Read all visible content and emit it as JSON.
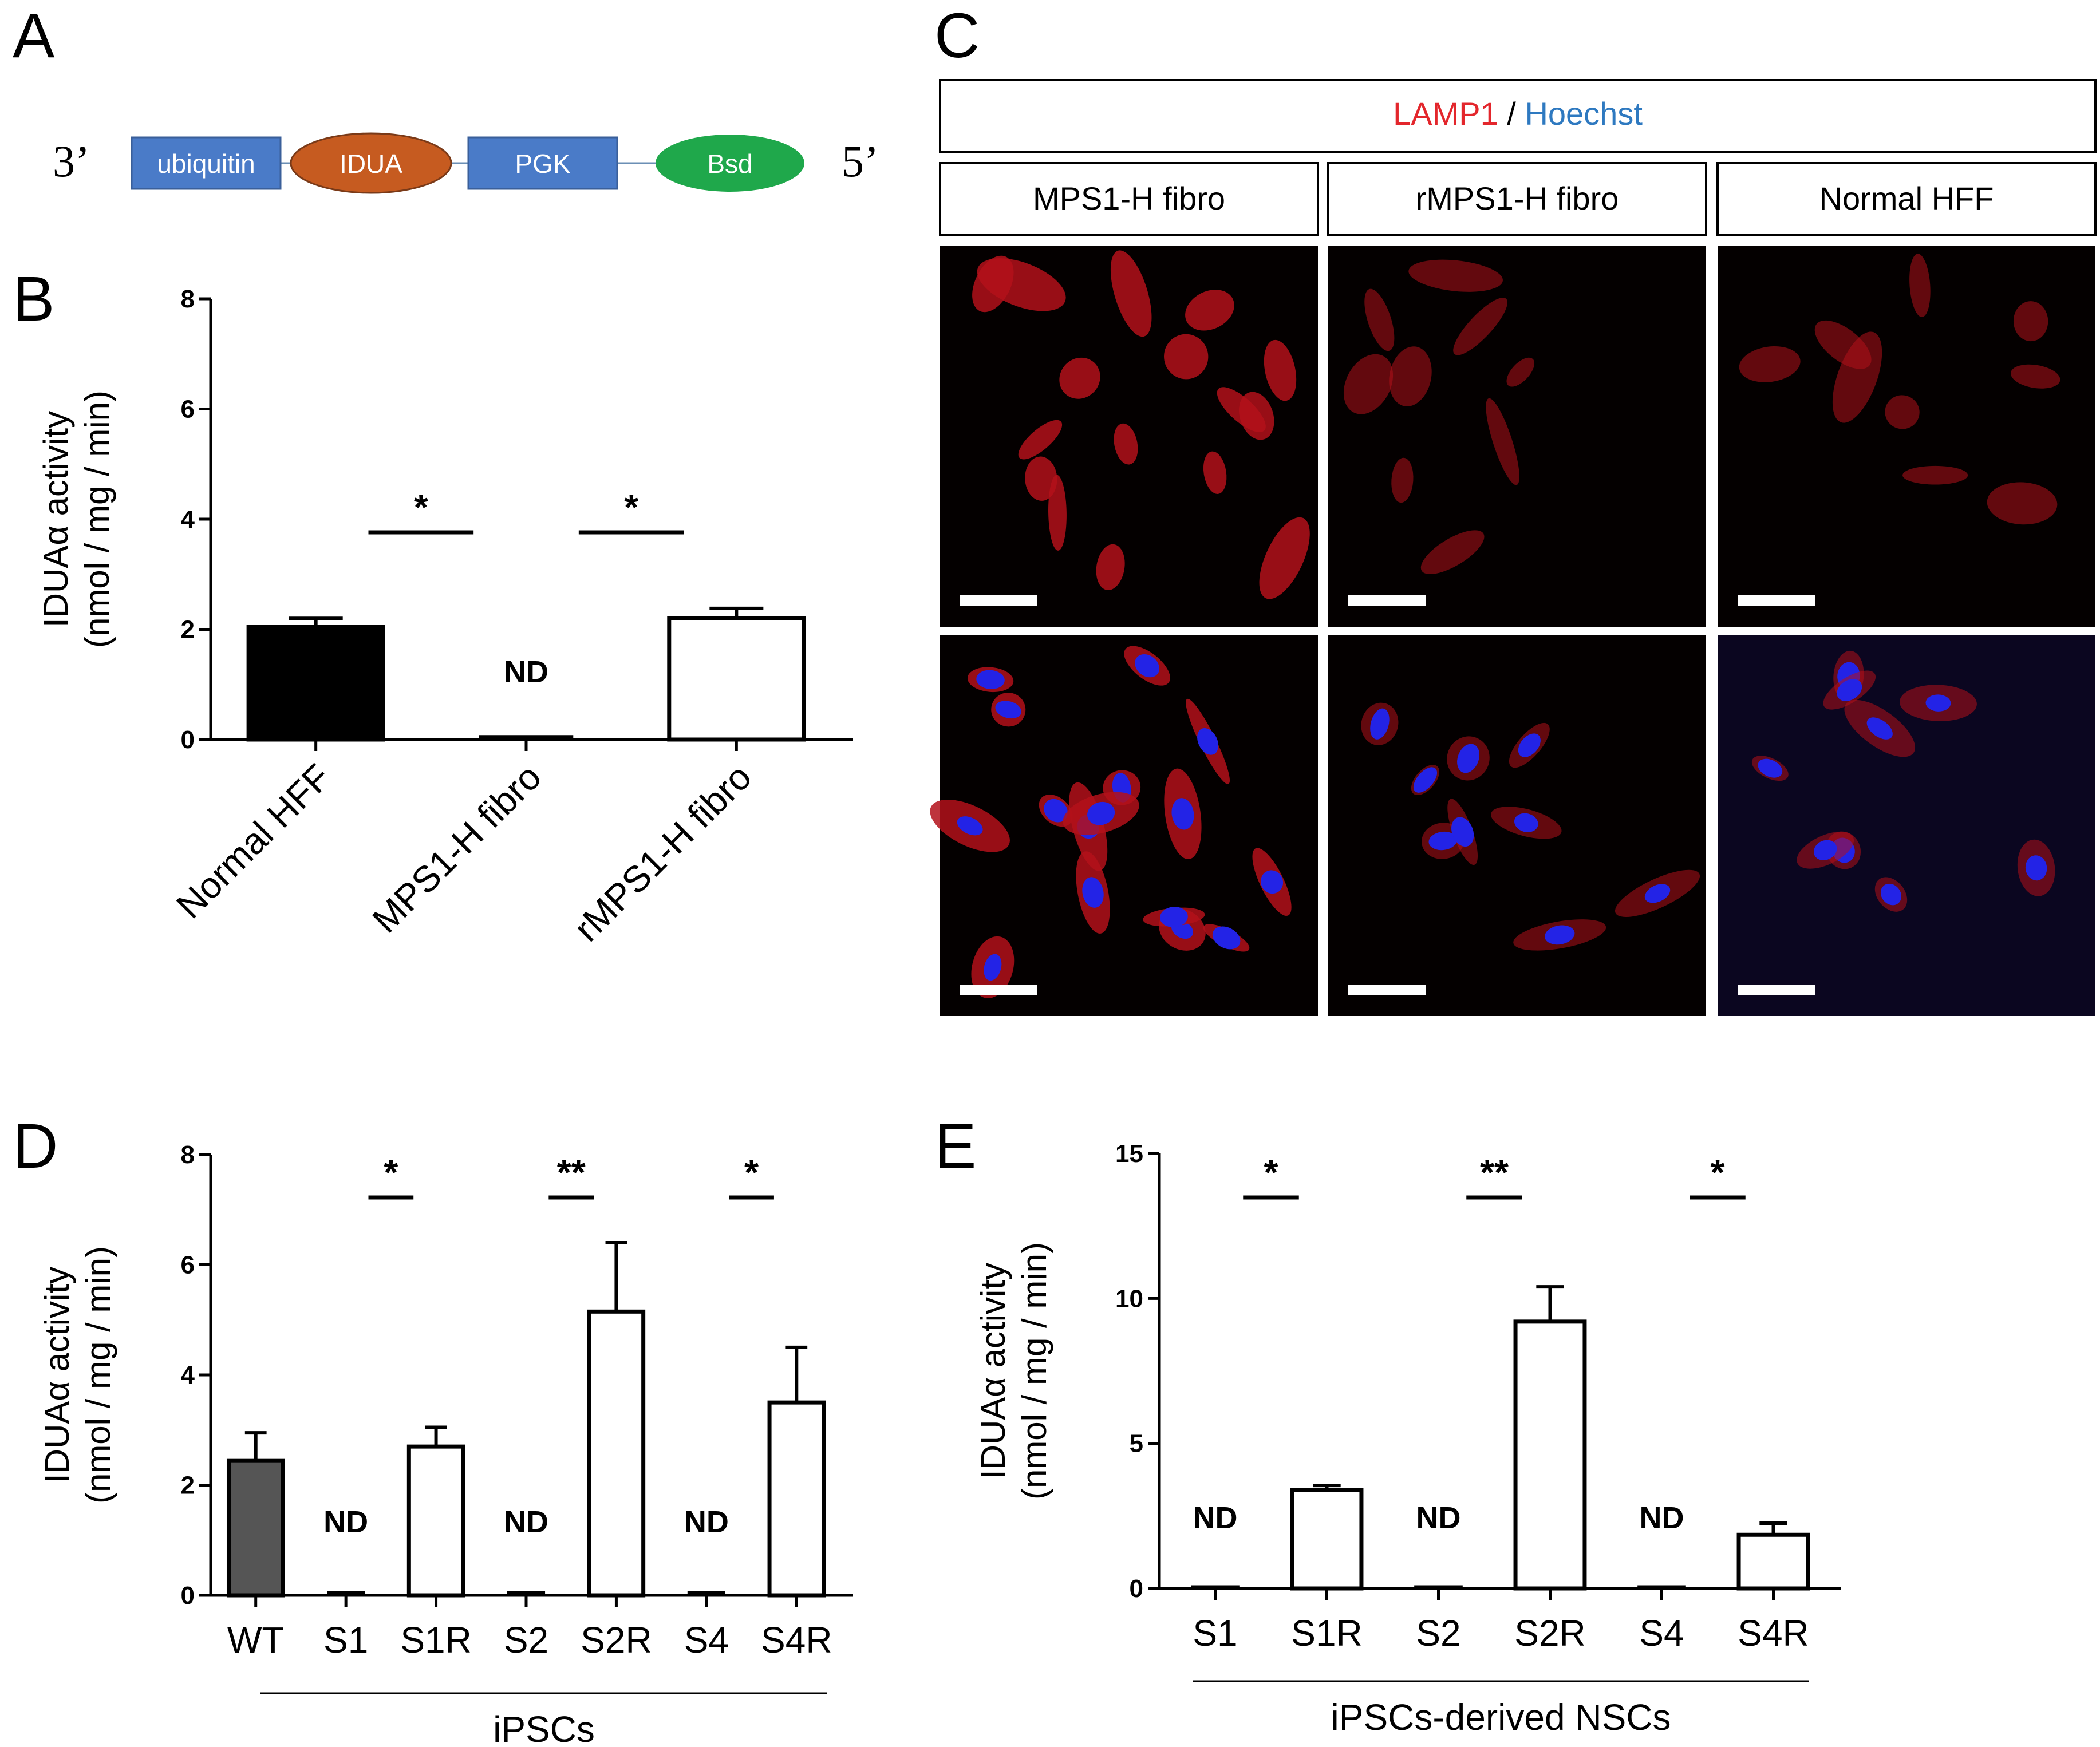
{
  "panels": {
    "a": "A",
    "b": "B",
    "c": "C",
    "d": "D",
    "e": "E"
  },
  "construct": {
    "end_left": "3’",
    "end_right": "5’",
    "elements": [
      "ubiquitin",
      "IDUA",
      "PGK",
      "Bsd"
    ],
    "colors": {
      "ubiquitin": "#4a7bc8",
      "idua": "#c65b20",
      "pgk": "#4a7bc8",
      "bsd": "#1fa84b"
    }
  },
  "microscopy": {
    "stain_red": "LAMP1",
    "stain_sep": " / ",
    "stain_blue": "Hoechst",
    "stain_red_color": "#e3262c",
    "stain_blue_color": "#2e79c0",
    "columns": [
      "MPS1-H fibro",
      "rMPS1-H fibro",
      "Normal HFF"
    ]
  },
  "chart_data": [
    {
      "panel": "B",
      "type": "bar",
      "categories": [
        "Normal HFF",
        "MPS1-H fibro",
        "rMPS1-H fibro"
      ],
      "values": [
        2.05,
        0.05,
        2.2
      ],
      "errors": [
        0.15,
        0.02,
        0.18
      ],
      "fills": [
        "#000000",
        "#ffffff",
        "#ffffff"
      ],
      "labels": [
        "",
        "ND",
        ""
      ],
      "ylabel": "IDUAα activity",
      "ylabel2": "(nmol / mg / min)",
      "ylim": [
        0,
        8
      ],
      "yticks": [
        "0",
        "2",
        "4",
        "6",
        "8"
      ],
      "significance": [
        {
          "between": [
            0,
            1
          ],
          "mark": "*"
        },
        {
          "between": [
            1,
            2
          ],
          "mark": "*"
        }
      ]
    },
    {
      "panel": "D",
      "type": "bar",
      "categories": [
        "WT",
        "S1",
        "S1R",
        "S2",
        "S2R",
        "S4",
        "S4R"
      ],
      "values": [
        2.45,
        0.05,
        2.7,
        0.05,
        5.15,
        0.05,
        3.5
      ],
      "errors": [
        0.5,
        0.05,
        0.35,
        0.05,
        1.25,
        0.05,
        1.0
      ],
      "fills": [
        "#555555",
        "#ffffff",
        "#ffffff",
        "#ffffff",
        "#ffffff",
        "#ffffff",
        "#ffffff"
      ],
      "labels": [
        "",
        "ND",
        "",
        "ND",
        "",
        "ND",
        ""
      ],
      "ylabel": "IDUAα activity",
      "ylabel2": "(nmol / mg / min)",
      "ylim": [
        0,
        8
      ],
      "yticks": [
        "0",
        "2",
        "4",
        "6",
        "8"
      ],
      "group_label": "iPSCs",
      "significance": [
        {
          "between": [
            1,
            2
          ],
          "mark": "*"
        },
        {
          "between": [
            3,
            4
          ],
          "mark": "**"
        },
        {
          "between": [
            5,
            6
          ],
          "mark": "*"
        }
      ]
    },
    {
      "panel": "E",
      "type": "bar",
      "categories": [
        "S1",
        "S1R",
        "S2",
        "S2R",
        "S4",
        "S4R"
      ],
      "values": [
        0.05,
        3.4,
        0.05,
        9.2,
        0.05,
        1.85
      ],
      "errors": [
        0.05,
        0.15,
        0.05,
        1.2,
        0.05,
        0.4
      ],
      "fills": [
        "#ffffff",
        "#ffffff",
        "#ffffff",
        "#ffffff",
        "#ffffff",
        "#ffffff"
      ],
      "labels": [
        "ND",
        "",
        "ND",
        "",
        "ND",
        ""
      ],
      "ylabel": "IDUAα activity",
      "ylabel2": "(nmol / mg / min)",
      "ylim": [
        0,
        15
      ],
      "yticks": [
        "0",
        "5",
        "10",
        "15"
      ],
      "group_label": "iPSCs-derived NSCs",
      "significance": [
        {
          "between": [
            0,
            1
          ],
          "mark": "*"
        },
        {
          "between": [
            2,
            3
          ],
          "mark": "**"
        },
        {
          "between": [
            4,
            5
          ],
          "mark": "*"
        }
      ]
    }
  ]
}
